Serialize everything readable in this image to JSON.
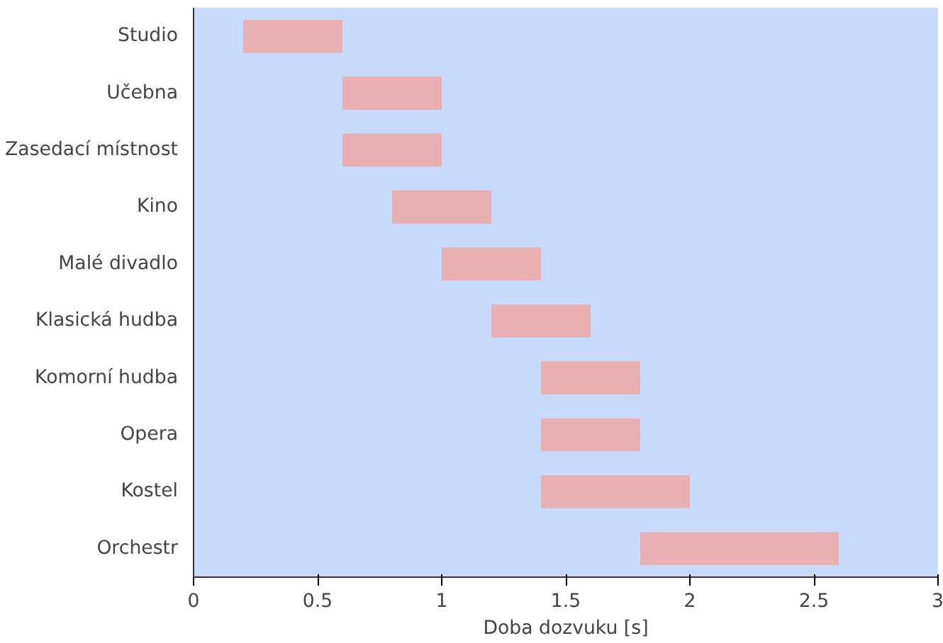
{
  "chart_data": {
    "type": "bar",
    "orientation": "horizontal",
    "xlabel": "Doba dozvuku [s]",
    "categories": [
      "Studio",
      "Učebna",
      "Zasedací místnost",
      "Kino",
      "Malé divadlo",
      "Klasická hudba",
      "Komorní hudba",
      "Opera",
      "Kostel",
      "Orchestr"
    ],
    "base": [
      0.2,
      0.6,
      0.6,
      0.8,
      1.0,
      1.2,
      1.4,
      1.4,
      1.4,
      1.8
    ],
    "values": [
      0.4,
      0.4,
      0.4,
      0.4,
      0.4,
      0.4,
      0.4,
      0.4,
      0.6,
      0.8
    ],
    "color": "#e8b0b0",
    "xlim": [
      0,
      3
    ],
    "xticks": [
      0,
      0.5,
      1,
      1.5,
      2,
      2.5,
      3
    ],
    "grid": false
  }
}
